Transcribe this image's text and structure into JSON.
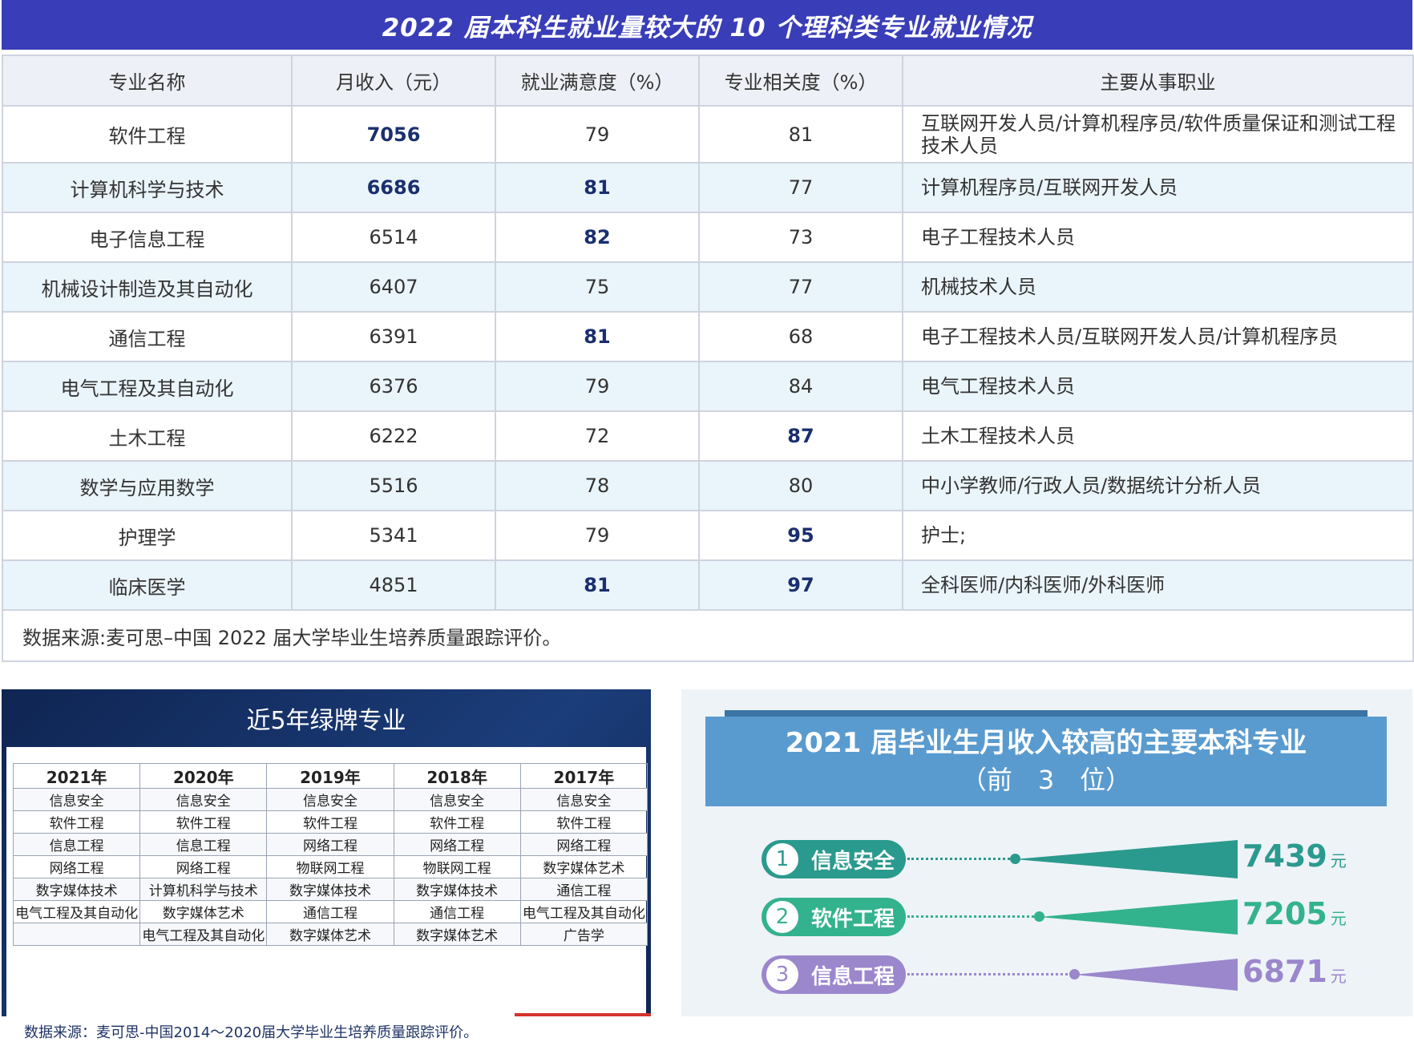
{
  "main_table": {
    "title": "2022 届本科生就业量较大的 10 个理科类专业就业情况",
    "headers": [
      "专业名称",
      "月收入（元）",
      "就业满意度（%）",
      "专业相关度（%）",
      "主要从事职业"
    ],
    "rows": [
      [
        "软件工程",
        "7056",
        "79",
        "81",
        "互联网开发人员/计算机程序员/软件质量保证和测试工程技术人员"
      ],
      [
        "计算机科学与技术",
        "6686",
        "81",
        "77",
        "计算机程序员/互联网开发人员"
      ],
      [
        "电子信息工程",
        "6514",
        "82",
        "73",
        "电子工程技术人员"
      ],
      [
        "机械设计制造及其自动化",
        "6407",
        "75",
        "77",
        "机械技术人员"
      ],
      [
        "通信工程",
        "6391",
        "81",
        "68",
        "电子工程技术人员/互联网开发人员/计算机程序员"
      ],
      [
        "电气工程及其自动化",
        "6376",
        "79",
        "84",
        "电气工程技术人员"
      ],
      [
        "土木工程",
        "6222",
        "72",
        "87",
        "土木工程技术人员"
      ],
      [
        "数学与应用数学",
        "5516",
        "78",
        "80",
        "中小学教师/行政人员/数据统计分析人员"
      ],
      [
        "护理学",
        "5341",
        "79",
        "95",
        "护士;"
      ],
      [
        "临床医学",
        "4851",
        "81",
        "97",
        "全科医师/内科医师/外科医师"
      ]
    ],
    "source": "数据来源:麦可思–中国 2022 届大学毕业生培养质量跟踪评价。"
  },
  "green_panel": {
    "title": "近5年绿牌专业",
    "headers": [
      "2021年",
      "2020年",
      "2019年",
      "2018年",
      "2017年"
    ],
    "rows": [
      [
        "信息安全",
        "信息安全",
        "信息安全",
        "信息安全",
        "信息安全"
      ],
      [
        "软件工程",
        "软件工程",
        "软件工程",
        "软件工程",
        "软件工程"
      ],
      [
        "信息工程",
        "信息工程",
        "网络工程",
        "网络工程",
        "网络工程"
      ],
      [
        "网络工程",
        "网络工程",
        "物联网工程",
        "物联网工程",
        "数字媒体艺术"
      ],
      [
        "数字媒体技术",
        "计算机科学与技术",
        "数字媒体技术",
        "数字媒体技术",
        "通信工程"
      ],
      [
        "电气工程及其自动化",
        "数字媒体艺术",
        "通信工程",
        "通信工程",
        "电气工程及其自动化"
      ],
      [
        "",
        "电气工程及其自动化",
        "数字媒体艺术",
        "数字媒体艺术",
        "广告学"
      ]
    ],
    "source": "数据来源：麦可思-中国2014～2020届大学毕业生培养质量跟踪评价。"
  },
  "income_panel": {
    "title_line1": "2021 届毕业生月收入较高的主要本科专业",
    "title_line2": "（前　3　位）",
    "ranks": [
      {
        "rank": "1",
        "name": "信息安全",
        "income": "7439",
        "unit": "元",
        "color": "#2b9a8e"
      },
      {
        "rank": "2",
        "name": "软件工程",
        "income": "7205",
        "unit": "元",
        "color": "#33b28e"
      },
      {
        "rank": "3",
        "name": "信息工程",
        "income": "6871",
        "unit": "元",
        "color": "#9b87cc"
      }
    ]
  }
}
